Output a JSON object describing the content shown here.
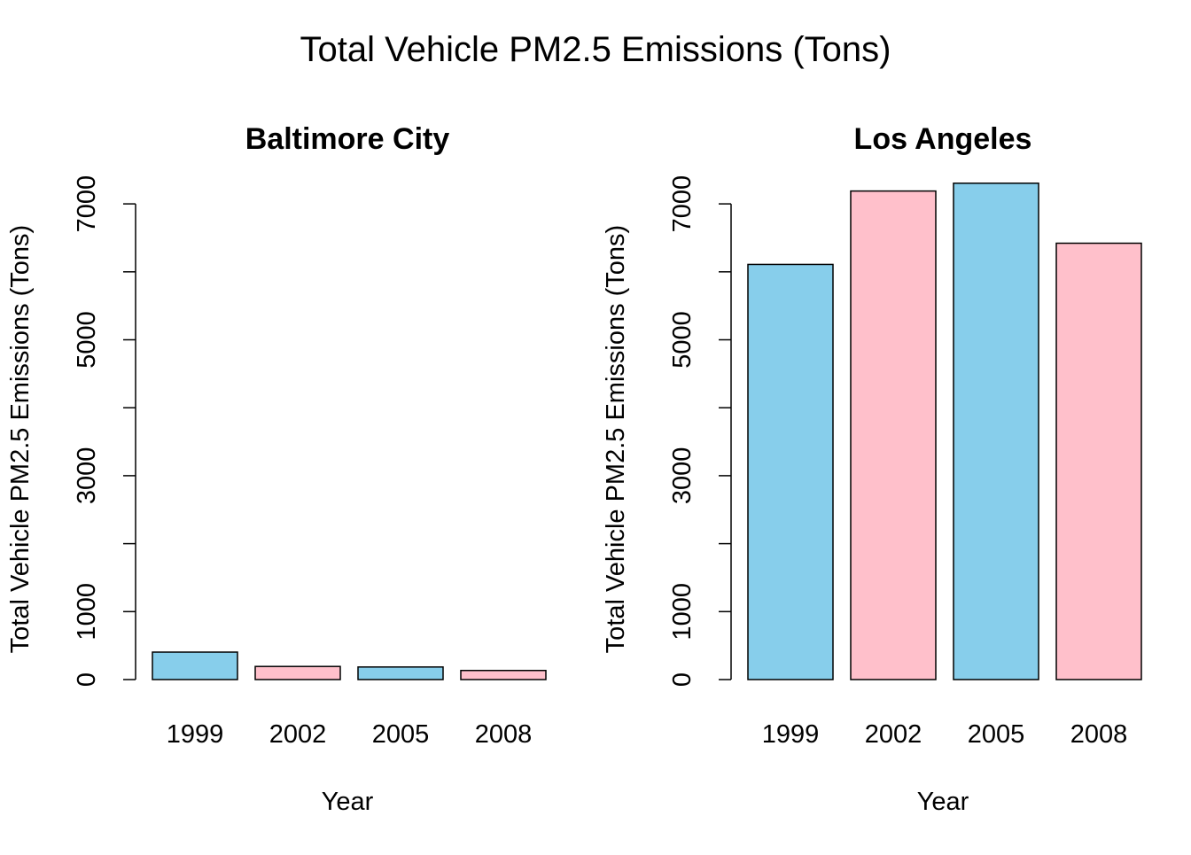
{
  "title": "Total Vehicle PM2.5 Emissions (Tons)",
  "colors": {
    "bar_a": "#87CEEB",
    "bar_b": "#FFC0CB",
    "outline": "#000000"
  },
  "chart_data": [
    {
      "type": "bar",
      "title": "Baltimore City",
      "xlabel": "Year",
      "ylabel": "Total Vehicle PM2.5 Emissions (Tons)",
      "categories": [
        "1999",
        "2002",
        "2005",
        "2008"
      ],
      "values": [
        404,
        193,
        185,
        134
      ],
      "ylim": [
        0,
        7000
      ],
      "yticks": [
        "0",
        "1000",
        "3000",
        "5000",
        "7000"
      ],
      "grid": false,
      "legend": "none"
    },
    {
      "type": "bar",
      "title": "Los Angeles",
      "xlabel": "Year",
      "ylabel": "Total Vehicle PM2.5 Emissions (Tons)",
      "categories": [
        "1999",
        "2002",
        "2005",
        "2008"
      ],
      "values": [
        6109,
        7189,
        7304,
        6421
      ],
      "ylim": [
        0,
        7000
      ],
      "yticks": [
        "0",
        "1000",
        "3000",
        "5000",
        "7000"
      ],
      "grid": false,
      "legend": "none"
    }
  ]
}
